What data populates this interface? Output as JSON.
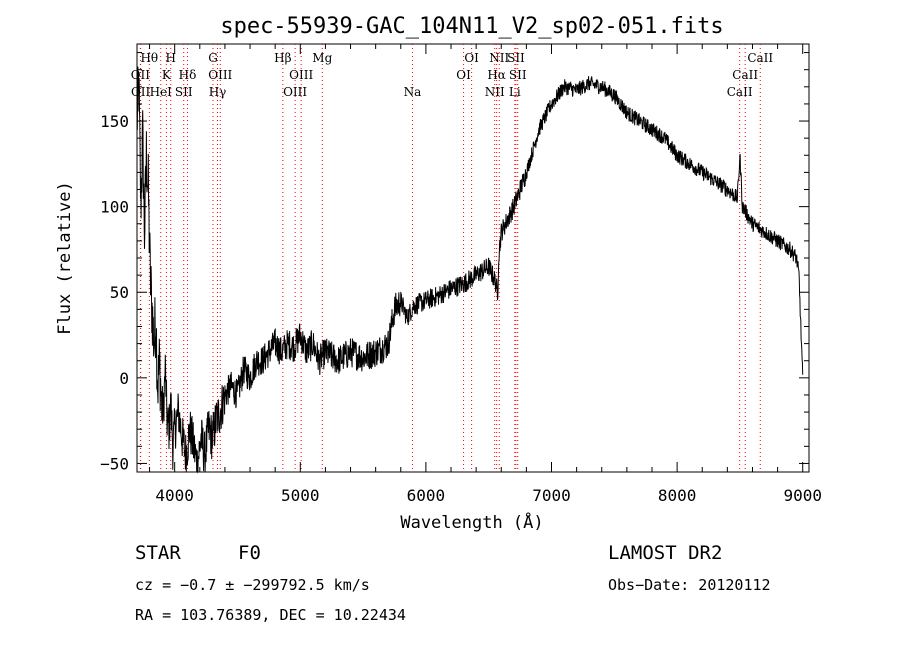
{
  "chart_data": {
    "type": "line",
    "title": "spec-55939-GAC_104N11_V2_sp02-051.fits",
    "xlabel": "Wavelength (Å)",
    "ylabel": "Flux (relative)",
    "xlim": [
      3700,
      9050
    ],
    "ylim": [
      -55,
      195
    ],
    "xticks": [
      4000,
      5000,
      6000,
      7000,
      8000,
      9000
    ],
    "yticks": [
      -50,
      0,
      50,
      100,
      150
    ],
    "grid": false,
    "series": [
      {
        "x": [
          3700,
          3715,
          3730,
          3745,
          3760,
          3775,
          3790,
          3805,
          3820,
          3835,
          3850,
          3865,
          3880,
          3895,
          3910,
          3925,
          3940,
          3955,
          3970,
          3985,
          4000,
          4030,
          4060,
          4090,
          4120,
          4150,
          4180,
          4210,
          4240,
          4270,
          4300,
          4330,
          4360,
          4400,
          4450,
          4500,
          4550,
          4600,
          4650,
          4700,
          4750,
          4800,
          4850,
          4900,
          4950,
          5000,
          5050,
          5100,
          5150,
          5200,
          5300,
          5400,
          5500,
          5600,
          5700,
          5750,
          5800,
          5850,
          5900,
          6000,
          6100,
          6200,
          6300,
          6400,
          6500,
          6560,
          6570,
          6580,
          6600,
          6700,
          6800,
          6900,
          7000,
          7100,
          7200,
          7300,
          7400,
          7500,
          7550,
          7600,
          7700,
          7800,
          7900,
          8000,
          8100,
          8200,
          8300,
          8400,
          8480,
          8500,
          8520,
          8540,
          8560,
          8600,
          8700,
          8800,
          8900,
          8950,
          8970,
          8990,
          9000
        ],
        "y": [
          150,
          170,
          100,
          140,
          85,
          130,
          110,
          60,
          40,
          20,
          35,
          -5,
          10,
          -15,
          -20,
          5,
          -25,
          -30,
          -15,
          -40,
          -30,
          -20,
          -35,
          -45,
          -30,
          -40,
          -50,
          -35,
          -45,
          -30,
          -35,
          -25,
          -20,
          -10,
          -5,
          -10,
          5,
          0,
          10,
          10,
          15,
          20,
          15,
          20,
          18,
          25,
          15,
          20,
          10,
          15,
          10,
          15,
          12,
          15,
          20,
          40,
          45,
          35,
          42,
          45,
          48,
          52,
          55,
          60,
          65,
          55,
          45,
          72,
          85,
          100,
          120,
          145,
          160,
          170,
          168,
          172,
          170,
          165,
          160,
          155,
          150,
          145,
          140,
          130,
          125,
          120,
          115,
          110,
          105,
          130,
          100,
          98,
          95,
          90,
          85,
          80,
          75,
          70,
          60,
          20,
          0
        ]
      }
    ],
    "spectral_lines": [
      {
        "name": "Hθ",
        "wave": 3798,
        "row": 1
      },
      {
        "name": "OII",
        "wave": 3727,
        "row": 2
      },
      {
        "name": "OII",
        "wave": 3729,
        "row": 3
      },
      {
        "name": "H",
        "wave": 3969,
        "row": 1
      },
      {
        "name": "K",
        "wave": 3934,
        "row": 2
      },
      {
        "name": "HeI",
        "wave": 3889,
        "row": 3
      },
      {
        "name": "Hδ",
        "wave": 4102,
        "row": 2
      },
      {
        "name": "SII",
        "wave": 4072,
        "row": 3
      },
      {
        "name": "G",
        "wave": 4305,
        "row": 1
      },
      {
        "name": "OIII",
        "wave": 4363,
        "row": 2
      },
      {
        "name": "Hγ",
        "wave": 4341,
        "row": 3
      },
      {
        "name": "Hβ",
        "wave": 4861,
        "row": 1
      },
      {
        "name": "OIII",
        "wave": 5007,
        "row": 2
      },
      {
        "name": "OIII",
        "wave": 4959,
        "row": 3
      },
      {
        "name": "Mg",
        "wave": 5175,
        "row": 1
      },
      {
        "name": "Na",
        "wave": 5893,
        "row": 3
      },
      {
        "name": "OI",
        "wave": 6364,
        "row": 1
      },
      {
        "name": "OI",
        "wave": 6300,
        "row": 2
      },
      {
        "name": "NII",
        "wave": 6584,
        "row": 1
      },
      {
        "name": "SII",
        "wave": 6717,
        "row": 1
      },
      {
        "name": "Hα",
        "wave": 6563,
        "row": 2
      },
      {
        "name": "SII",
        "wave": 6731,
        "row": 2
      },
      {
        "name": "NII",
        "wave": 6548,
        "row": 3
      },
      {
        "name": "Li",
        "wave": 6708,
        "row": 3
      },
      {
        "name": "CaII",
        "wave": 8662,
        "row": 1
      },
      {
        "name": "CaII",
        "wave": 8542,
        "row": 2
      },
      {
        "name": "CaII",
        "wave": 8498,
        "row": 3
      }
    ],
    "line_color": "#000000",
    "marker_color": "#ff0000"
  },
  "info": {
    "object_class": "STAR",
    "subclass": "F0",
    "survey": "LAMOST DR2",
    "cz_line": "cz = −0.7 ± −299792.5 km/s",
    "obs_date": "Obs−Date: 20120112",
    "coords": "RA = 103.76389, DEC =  10.22434"
  }
}
